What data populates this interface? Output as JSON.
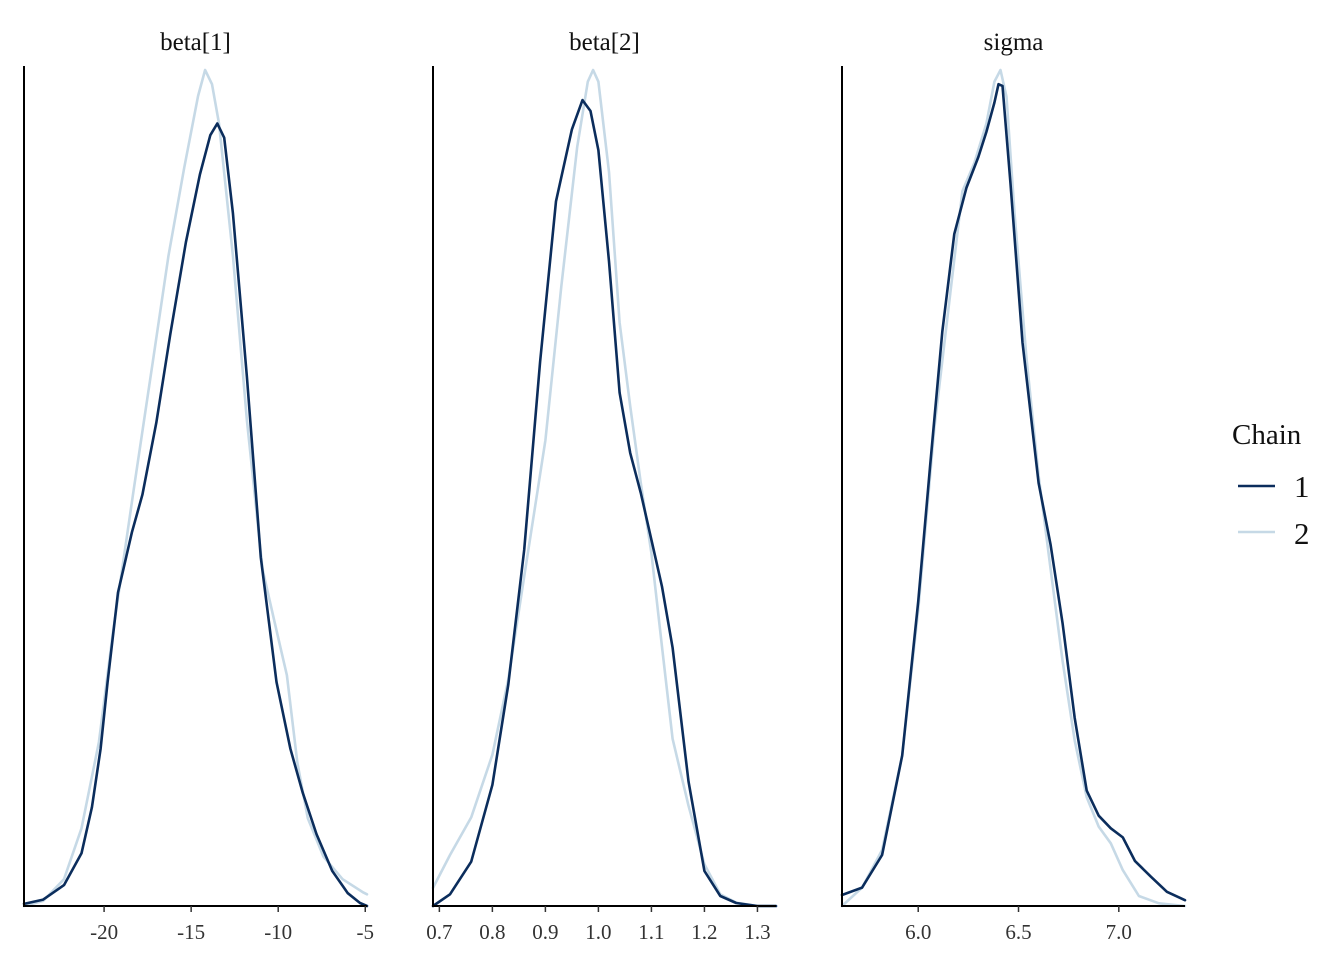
{
  "chart_data": {
    "type": "line",
    "legend": {
      "title": "Chain",
      "placement": "right",
      "entries": [
        {
          "label": "1",
          "color": "#0b2d5c"
        },
        {
          "label": "2",
          "color": "#c6d9e6"
        }
      ]
    },
    "facets": [
      {
        "title": "beta[1]",
        "xlim": [
          -24.6,
          -4.9
        ],
        "ticks": [
          -20,
          -15,
          -10,
          -5
        ],
        "tick_labels": [
          "-20",
          "-15",
          "-10",
          "-5"
        ],
        "series": [
          {
            "name": "1",
            "x": [
              -24.6,
              -23.5,
              -22.3,
              -21.3,
              -20.7,
              -20.2,
              -19.8,
              -19.2,
              -18.4,
              -17.8,
              -17.0,
              -16.2,
              -15.3,
              -14.5,
              -13.9,
              -13.5,
              -13.1,
              -12.6,
              -11.8,
              -11.0,
              -10.1,
              -9.3,
              -8.6,
              -7.8,
              -6.9,
              -6.0,
              -5.3,
              -4.9
            ],
            "y": [
              0.0025,
              0.0076,
              0.025,
              0.063,
              0.118,
              0.188,
              0.268,
              0.375,
              0.447,
              0.492,
              0.578,
              0.684,
              0.794,
              0.875,
              0.922,
              0.936,
              0.919,
              0.829,
              0.633,
              0.417,
              0.268,
              0.188,
              0.136,
              0.086,
              0.042,
              0.0153,
              0.0036,
              0.0
            ]
          },
          {
            "name": "2",
            "x": [
              -24.6,
              -23.5,
              -22.3,
              -21.3,
              -20.3,
              -19.5,
              -18.3,
              -17.2,
              -16.3,
              -15.4,
              -14.6,
              -14.2,
              -13.8,
              -13.4,
              -12.6,
              -11.8,
              -10.9,
              -10.2,
              -9.5,
              -8.9,
              -8.3,
              -7.4,
              -6.3,
              -5.1,
              -4.9
            ],
            "y": [
              0.0,
              0.0061,
              0.032,
              0.093,
              0.196,
              0.326,
              0.498,
              0.651,
              0.778,
              0.883,
              0.969,
              1.0,
              0.983,
              0.936,
              0.778,
              0.581,
              0.403,
              0.339,
              0.276,
              0.171,
              0.105,
              0.059,
              0.032,
              0.016,
              0.014
            ]
          }
        ]
      },
      {
        "title": "beta[2]",
        "xlim": [
          0.688,
          1.335
        ],
        "ticks": [
          0.7,
          0.8,
          0.9,
          1.0,
          1.1,
          1.2,
          1.3
        ],
        "tick_labels": [
          "0.7",
          "0.8",
          "0.9",
          "1.0",
          "1.1",
          "1.2",
          "1.3"
        ],
        "series": [
          {
            "name": "1",
            "x": [
              0.688,
              0.72,
              0.76,
              0.8,
              0.83,
              0.86,
              0.89,
              0.92,
              0.95,
              0.97,
              0.985,
              1.0,
              1.02,
              1.04,
              1.06,
              1.08,
              1.1,
              1.12,
              1.14,
              1.17,
              1.2,
              1.23,
              1.26,
              1.3,
              1.335
            ],
            "y": [
              0.0,
              0.014,
              0.053,
              0.145,
              0.265,
              0.426,
              0.651,
              0.843,
              0.929,
              0.964,
              0.951,
              0.904,
              0.771,
              0.614,
              0.542,
              0.494,
              0.438,
              0.382,
              0.309,
              0.149,
              0.042,
              0.012,
              0.0036,
              0.0,
              0.0
            ]
          },
          {
            "name": "2",
            "x": [
              0.688,
              0.72,
              0.76,
              0.8,
              0.83,
              0.86,
              0.9,
              0.93,
              0.96,
              0.98,
              0.99,
              1.0,
              1.02,
              1.04,
              1.06,
              1.08,
              1.1,
              1.12,
              1.14,
              1.17,
              1.2,
              1.23,
              1.26,
              1.3,
              1.335
            ],
            "y": [
              0.0217,
              0.061,
              0.106,
              0.181,
              0.271,
              0.394,
              0.557,
              0.741,
              0.908,
              0.986,
              1.0,
              0.986,
              0.878,
              0.698,
              0.598,
              0.506,
              0.422,
              0.31,
              0.2,
              0.12,
              0.05,
              0.014,
              0.004,
              0.0,
              0.0
            ]
          }
        ]
      },
      {
        "title": "sigma",
        "xlim": [
          5.62,
          7.33
        ],
        "ticks": [
          6.0,
          6.5,
          7.0
        ],
        "tick_labels": [
          "6.0",
          "6.5",
          "7.0"
        ],
        "series": [
          {
            "name": "1",
            "x": [
              5.62,
              5.72,
              5.82,
              5.92,
              6.0,
              6.06,
              6.12,
              6.18,
              6.24,
              6.3,
              6.34,
              6.38,
              6.4,
              6.42,
              6.46,
              6.52,
              6.6,
              6.66,
              6.72,
              6.78,
              6.84,
              6.9,
              6.96,
              7.02,
              7.08,
              7.16,
              7.24,
              7.33
            ],
            "y": [
              0.0132,
              0.022,
              0.061,
              0.18,
              0.364,
              0.529,
              0.687,
              0.804,
              0.859,
              0.896,
              0.926,
              0.961,
              0.983,
              0.981,
              0.864,
              0.674,
              0.506,
              0.432,
              0.338,
              0.225,
              0.138,
              0.108,
              0.093,
              0.082,
              0.054,
              0.035,
              0.017,
              0.0069
            ]
          },
          {
            "name": "2",
            "x": [
              5.62,
              5.72,
              5.82,
              5.92,
              6.0,
              6.08,
              6.16,
              6.22,
              6.28,
              6.34,
              6.38,
              6.41,
              6.44,
              6.48,
              6.54,
              6.6,
              6.66,
              6.72,
              6.78,
              6.84,
              6.9,
              6.96,
              7.02,
              7.1,
              7.2,
              7.33
            ],
            "y": [
              0.0,
              0.022,
              0.067,
              0.18,
              0.354,
              0.571,
              0.733,
              0.855,
              0.889,
              0.936,
              0.986,
              1.0,
              0.968,
              0.829,
              0.655,
              0.515,
              0.403,
              0.293,
              0.198,
              0.13,
              0.095,
              0.075,
              0.043,
              0.012,
              0.0032,
              0.0
            ]
          }
        ]
      }
    ]
  }
}
